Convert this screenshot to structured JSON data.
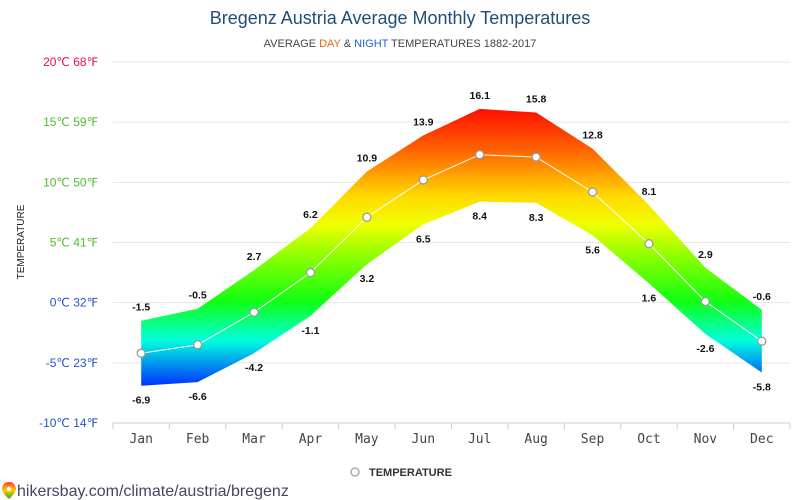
{
  "page": {
    "source_text": "hikersbay.com/climate/austria/bregenz"
  },
  "chart_data": {
    "type": "area",
    "title": "Bregenz Austria Average Monthly Temperatures",
    "subtitle": {
      "prefix": "AVERAGE ",
      "day": "DAY",
      "mid": " & ",
      "night": "NIGHT",
      "suffix": " TEMPERATURES 1882-2017"
    },
    "ylabel": "TEMPERATURE",
    "categories": [
      "Jan",
      "Feb",
      "Mar",
      "Apr",
      "May",
      "Jun",
      "Jul",
      "Aug",
      "Sep",
      "Oct",
      "Nov",
      "Dec"
    ],
    "series": [
      {
        "name": "DAY",
        "values": [
          -1.5,
          -0.5,
          2.7,
          6.2,
          10.9,
          13.9,
          16.1,
          15.8,
          12.8,
          8.1,
          2.9,
          -0.6
        ],
        "labels": [
          "-1.5",
          "-0.5",
          "2.7",
          "6.2",
          "10.9",
          "13.9",
          "16.1",
          "15.8",
          "12.8",
          "8.1",
          "2.9",
          "-0.6"
        ]
      },
      {
        "name": "NIGHT",
        "values": [
          -6.9,
          -6.6,
          -4.2,
          -1.1,
          3.2,
          6.5,
          8.4,
          8.3,
          5.6,
          1.6,
          -2.6,
          -5.8
        ],
        "labels": [
          "-6.9",
          "-6.6",
          "-4.2",
          "-1.1",
          "3.2",
          "6.5",
          "8.4",
          "8.3",
          "5.6",
          "1.6",
          "-2.6",
          "-5.8"
        ]
      },
      {
        "name": "TEMPERATURE",
        "values": [
          -4.2,
          -3.5,
          -0.8,
          2.5,
          7.1,
          10.2,
          12.3,
          12.1,
          9.2,
          4.9,
          0.1,
          -3.2
        ]
      }
    ],
    "yticks": [
      {
        "value": 20,
        "label": "20℃ 68℉",
        "color": "#e8114f"
      },
      {
        "value": 15,
        "label": "15℃ 59℉",
        "color": "#4fbe2e"
      },
      {
        "value": 10,
        "label": "10℃ 50℉",
        "color": "#4fbe2e"
      },
      {
        "value": 5,
        "label": "5℃ 41℉",
        "color": "#4fbe2e"
      },
      {
        "value": 0,
        "label": "0℃ 32℉",
        "color": "#2255cc"
      },
      {
        "value": -5,
        "label": "-5℃ 23℉",
        "color": "#2255cc"
      },
      {
        "value": -10,
        "label": "-10℃ 14℉",
        "color": "#2255cc"
      }
    ],
    "ylim": [
      -10,
      20
    ],
    "grid": true,
    "legend": {
      "label": "TEMPERATURE",
      "position": "bottom-center"
    },
    "colors": {
      "day_word": "#e8650c",
      "night_word": "#1f5fd8",
      "line": "#ffffff",
      "grid": "#e6e6e6"
    }
  }
}
